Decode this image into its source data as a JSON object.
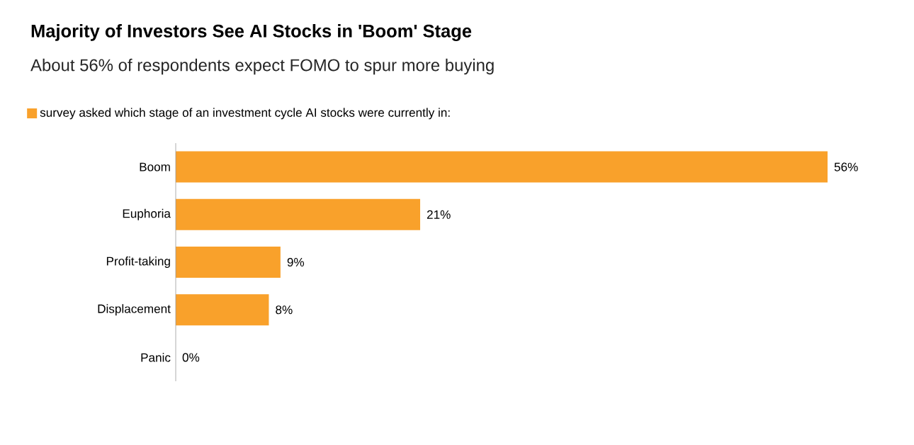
{
  "chart_data": {
    "type": "bar",
    "orientation": "horizontal",
    "title": "Majority of Investors See AI Stocks in 'Boom' Stage",
    "subtitle": "About 56% of respondents expect FOMO to spur more buying",
    "categories": [
      "Boom",
      "Euphoria",
      "Profit-taking",
      "Displacement",
      "Panic"
    ],
    "series": [
      {
        "name": "survey asked which stage of an investment cycle AI stocks were currently in:",
        "color": "#f9a12b",
        "values": [
          56,
          21,
          9,
          8,
          0
        ],
        "value_labels": [
          "56%",
          "21%",
          "9%",
          "8%",
          "0%"
        ]
      }
    ],
    "legend": "top left"
  }
}
